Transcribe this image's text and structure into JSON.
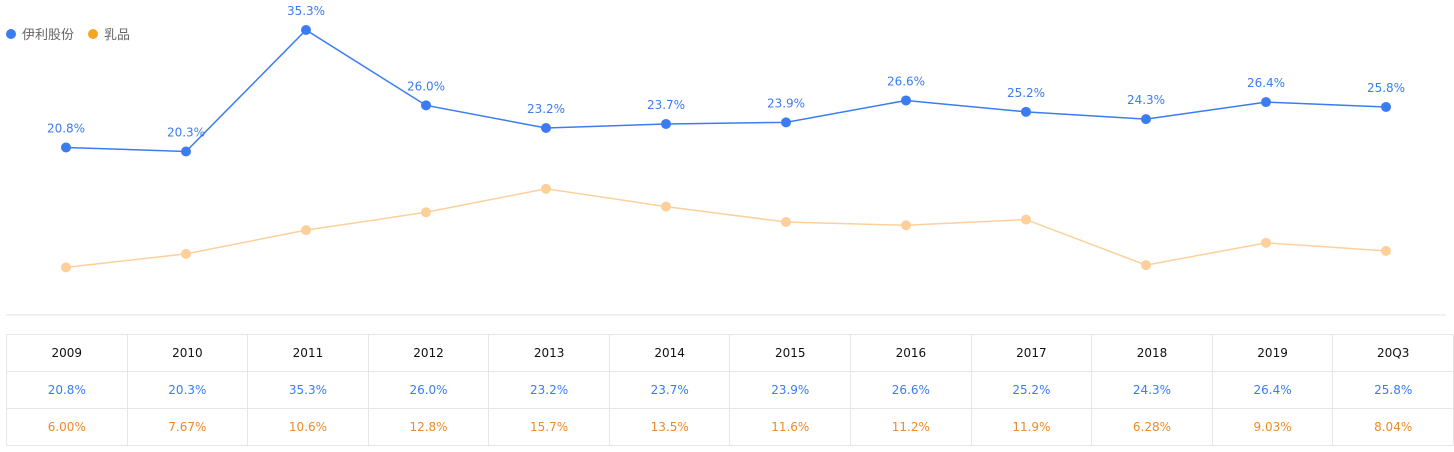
{
  "legend": [
    {
      "label": "伊利股份",
      "color": "#3b7cf0"
    },
    {
      "label": "乳品",
      "color": "#f5a623"
    }
  ],
  "chart_data": {
    "type": "line",
    "categories": [
      "2009",
      "2010",
      "2011",
      "2012",
      "2013",
      "2014",
      "2015",
      "2016",
      "2017",
      "2018",
      "2019",
      "20Q3"
    ],
    "series": [
      {
        "name": "伊利股份",
        "color": "#3b7cf0",
        "values": [
          20.8,
          20.3,
          35.3,
          26.0,
          23.2,
          23.7,
          23.9,
          26.6,
          25.2,
          24.3,
          26.4,
          25.8
        ],
        "labels": [
          "20.8%",
          "20.3%",
          "35.3%",
          "26.0%",
          "23.2%",
          "23.7%",
          "23.9%",
          "26.6%",
          "25.2%",
          "24.3%",
          "26.4%",
          "25.8%"
        ]
      },
      {
        "name": "乳品",
        "color": "#fdd09b",
        "values": [
          6.0,
          7.67,
          10.6,
          12.8,
          15.7,
          13.5,
          11.6,
          11.2,
          11.9,
          6.28,
          9.03,
          8.04
        ],
        "labels": [
          "6.00%",
          "7.67%",
          "10.6%",
          "12.8%",
          "15.7%",
          "13.5%",
          "11.6%",
          "11.2%",
          "11.9%",
          "6.28%",
          "9.03%",
          "8.04%"
        ]
      }
    ],
    "ylim": [
      0,
      39
    ],
    "grid": false,
    "legend_position": "top-left"
  },
  "table": {
    "years": [
      "2009",
      "2010",
      "2011",
      "2012",
      "2013",
      "2014",
      "2015",
      "2016",
      "2017",
      "2018",
      "2019",
      "20Q3"
    ],
    "row1": [
      "20.8%",
      "20.3%",
      "35.3%",
      "26.0%",
      "23.2%",
      "23.7%",
      "23.9%",
      "26.6%",
      "25.2%",
      "24.3%",
      "26.4%",
      "25.8%"
    ],
    "row2": [
      "6.00%",
      "7.67%",
      "10.6%",
      "12.8%",
      "15.7%",
      "13.5%",
      "11.6%",
      "11.2%",
      "11.9%",
      "6.28%",
      "9.03%",
      "8.04%"
    ]
  }
}
